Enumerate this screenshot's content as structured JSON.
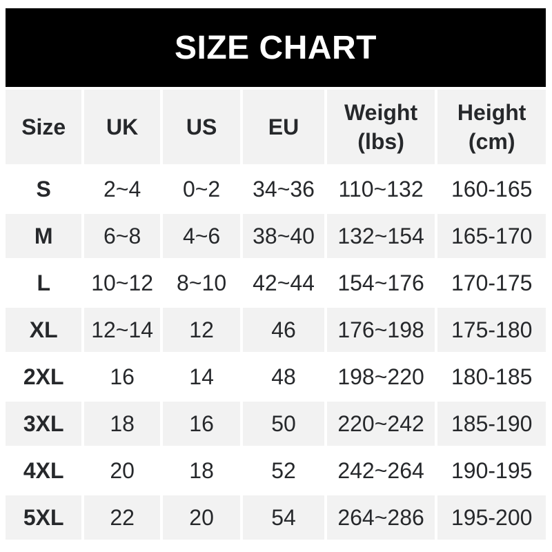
{
  "chart_data": {
    "type": "table",
    "title": "SIZE CHART",
    "columns": [
      {
        "key": "size",
        "label": "Size",
        "lines": [
          "Size"
        ]
      },
      {
        "key": "uk",
        "label": "UK",
        "lines": [
          "UK"
        ]
      },
      {
        "key": "us",
        "label": "US",
        "lines": [
          "US"
        ]
      },
      {
        "key": "eu",
        "label": "EU",
        "lines": [
          "EU"
        ]
      },
      {
        "key": "weight-lbs",
        "label": "Weight (lbs)",
        "lines": [
          "Weight",
          "(lbs)"
        ]
      },
      {
        "key": "height-cm",
        "label": "Height (cm)",
        "lines": [
          "Height",
          "(cm)"
        ]
      }
    ],
    "rows": [
      [
        "S",
        "2~4",
        "0~2",
        "34~36",
        "110~132",
        "160-165"
      ],
      [
        "M",
        "6~8",
        "4~6",
        "38~40",
        "132~154",
        "165-170"
      ],
      [
        "L",
        "10~12",
        "8~10",
        "42~44",
        "154~176",
        "170-175"
      ],
      [
        "XL",
        "12~14",
        "12",
        "46",
        "176~198",
        "175-180"
      ],
      [
        "2XL",
        "16",
        "14",
        "48",
        "198~220",
        "180-185"
      ],
      [
        "3XL",
        "18",
        "16",
        "50",
        "220~242",
        "185-190"
      ],
      [
        "4XL",
        "20",
        "18",
        "52",
        "242~264",
        "190-195"
      ],
      [
        "5XL",
        "22",
        "20",
        "54",
        "264~286",
        "195-200"
      ]
    ],
    "layout": {
      "header_background": "#f2f2f2",
      "alternating_rows": true,
      "grid": "4px white gutters between cells"
    }
  },
  "colors": {
    "banner_bg": "#000000",
    "title_color": "#ffffff",
    "row_alt_bg": "#f2f2f2",
    "text": "#26282b"
  }
}
